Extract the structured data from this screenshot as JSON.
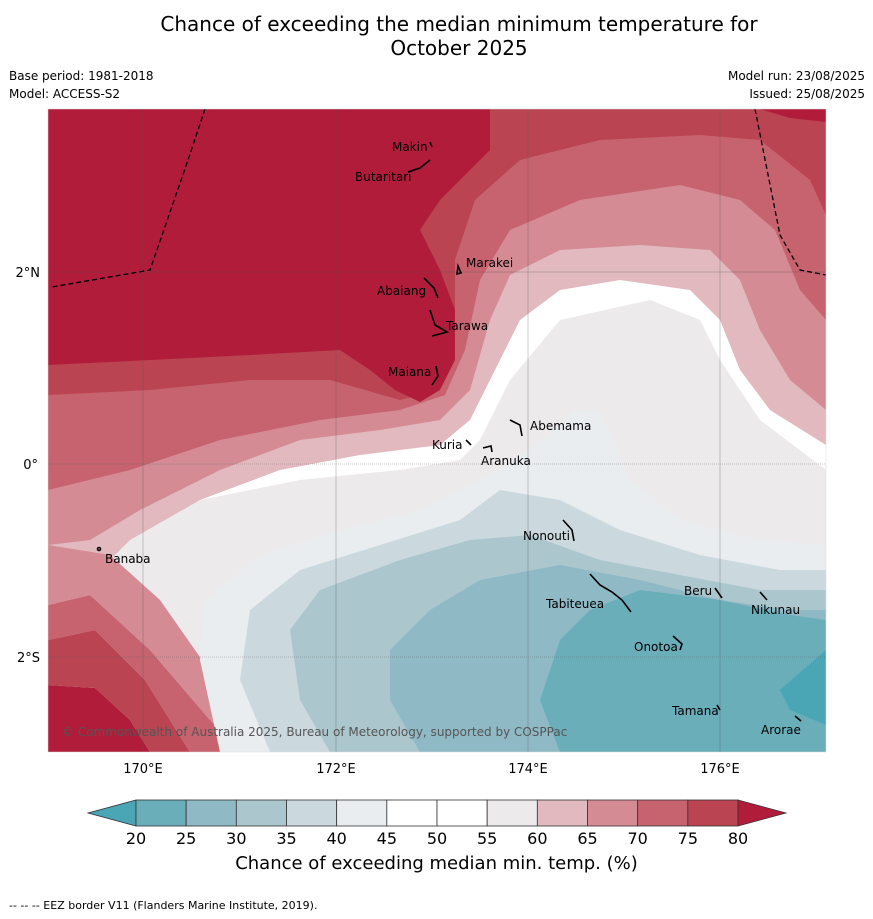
{
  "title_line1": "Chance of exceeding the median minimum temperature for",
  "title_line2": "October 2025",
  "base_period": "Base period: 1981-2018",
  "model": "Model: ACCESS-S2",
  "model_run": "Model run: 23/08/2025",
  "issued": "Issued: 25/08/2025",
  "copyright": "© Commonwealth of Australia 2025, Bureau of Meteorology, supported by COSPPac",
  "lon_labels": [
    "170°E",
    "172°E",
    "174°E",
    "176°E"
  ],
  "lat_labels": [
    "2°N",
    "0°",
    "2°S"
  ],
  "places": [
    "Makin",
    "Butaritari",
    "Marakei",
    "Abaiang",
    "Tarawa",
    "Maiana",
    "Abemama",
    "Kuria",
    "Aranuka",
    "Banaba",
    "Nonouti",
    "Tabiteuea",
    "Beru",
    "Nikunau",
    "Onotoa",
    "Tamana",
    "Arorae"
  ],
  "colorbar": {
    "ticks": [
      "20",
      "25",
      "30",
      "35",
      "40",
      "45",
      "50",
      "55",
      "60",
      "65",
      "70",
      "75",
      "80"
    ],
    "colors": [
      "#4aa5b5",
      "#6aaeba",
      "#8fb9c5",
      "#abc7cd",
      "#cbd9de",
      "#e9edf0",
      "#ffffff",
      "#ffffff",
      "#edeaeb",
      "#e1b9bf",
      "#d48b94",
      "#c7636f",
      "#bb4452",
      "#b01c3a"
    ],
    "label": "Chance of exceeding median min. temp. (%)"
  },
  "eez_note": "--  --  -- EEZ border V11 (Flanders Marine Institute, 2019)."
}
